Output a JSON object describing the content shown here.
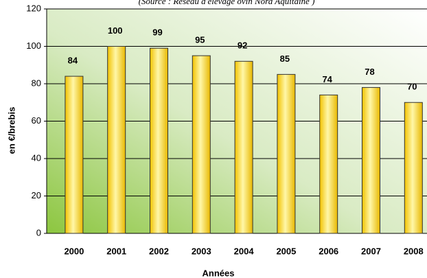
{
  "chart_data": {
    "type": "bar",
    "subtitle": "(Source : Réseau d'élevage ovin Nord Aquitaine )",
    "x_label": "Années",
    "y_label": "en €/brebis",
    "categories": [
      "2000",
      "2001",
      "2002",
      "2003",
      "2004",
      "2005",
      "2006",
      "2007",
      "2008"
    ],
    "values": [
      84,
      100,
      99,
      95,
      92,
      85,
      74,
      78,
      70
    ],
    "color": "#ffe14d",
    "ylim": [
      0,
      120
    ],
    "yticks": [
      0,
      20,
      40,
      60,
      80,
      100,
      120
    ],
    "grid": true
  }
}
